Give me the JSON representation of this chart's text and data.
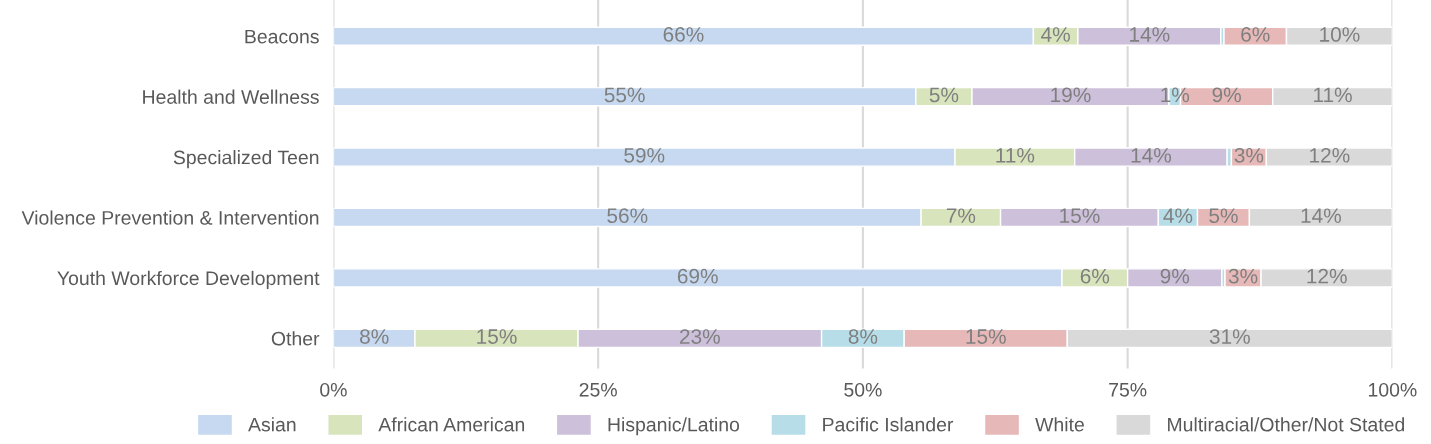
{
  "chart_data": {
    "type": "bar",
    "orientation": "horizontal",
    "stacked": true,
    "categories": [
      "Beacons",
      "Health and Wellness",
      "Specialized Teen",
      "Violence Prevention & Intervention",
      "Youth Workforce Development",
      "Other"
    ],
    "series": [
      {
        "name": "Asian",
        "color": "#c6d9f0",
        "values": [
          66.1,
          55.0,
          58.7,
          55.5,
          68.8,
          7.7
        ],
        "value_labels": [
          "66%",
          "55%",
          "59%",
          "56%",
          "69%",
          "8%"
        ]
      },
      {
        "name": "African American",
        "color": "#d8e4bc",
        "values": [
          4.2,
          5.3,
          11.3,
          7.5,
          6.2,
          15.4
        ],
        "value_labels": [
          "4%",
          "5%",
          "11%",
          "7%",
          "6%",
          "15%"
        ]
      },
      {
        "name": "Hispanic/Latino",
        "color": "#ccc0da",
        "values": [
          13.5,
          18.6,
          14.4,
          14.9,
          8.9,
          23.0
        ],
        "value_labels": [
          "14%",
          "19%",
          "14%",
          "15%",
          "9%",
          "23%"
        ]
      },
      {
        "name": "Pacific Islander",
        "color": "#b7dee8",
        "values": [
          0.3,
          1.1,
          0.4,
          3.7,
          0.3,
          7.8
        ],
        "value_labels": [
          null,
          "1%",
          null,
          "4%",
          null,
          "8%"
        ]
      },
      {
        "name": "White",
        "color": "#e6b9b8",
        "values": [
          5.9,
          8.7,
          3.3,
          4.9,
          3.4,
          15.4
        ],
        "value_labels": [
          "6%",
          "9%",
          "3%",
          "5%",
          "3%",
          "15%"
        ]
      },
      {
        "name": "Multiracial/Other/Not Stated",
        "color": "#d9d9d9",
        "values": [
          10.0,
          11.3,
          11.9,
          13.5,
          12.4,
          30.7
        ],
        "value_labels": [
          "10%",
          "11%",
          "12%",
          "14%",
          "12%",
          "31%"
        ]
      }
    ],
    "xlim": [
      0,
      100
    ],
    "xticks": [
      {
        "value": 0,
        "label": "0%"
      },
      {
        "value": 25,
        "label": "25%"
      },
      {
        "value": 50,
        "label": "50%"
      },
      {
        "value": 75,
        "label": "75%"
      },
      {
        "value": 100,
        "label": "100%"
      }
    ],
    "grid": "x",
    "legend": "bottom"
  }
}
